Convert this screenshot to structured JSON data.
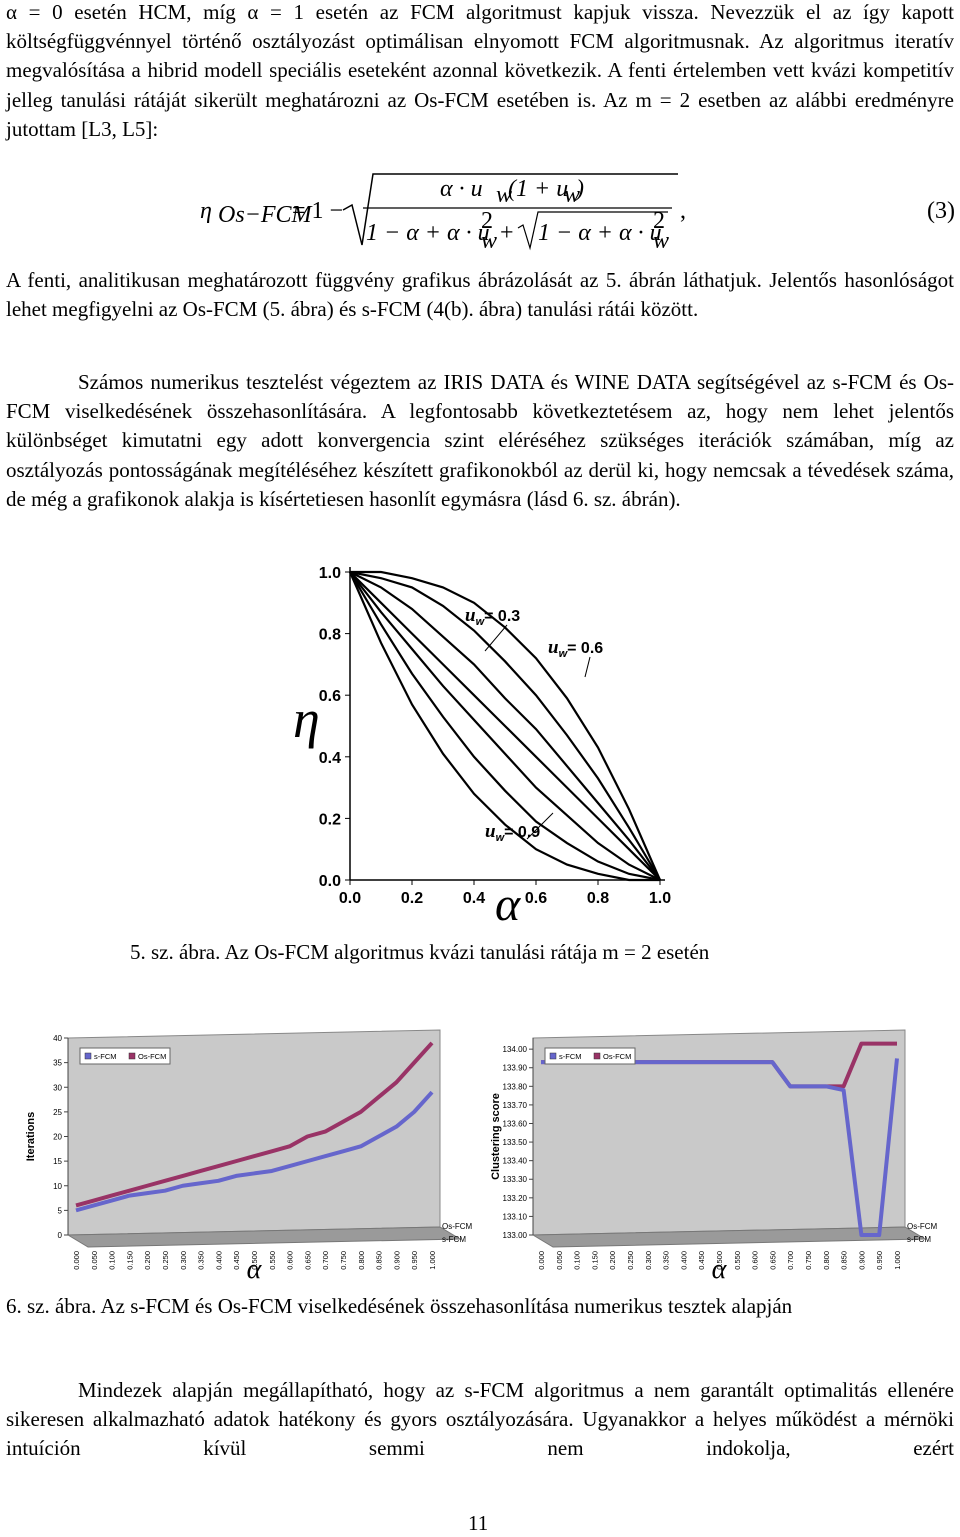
{
  "paragraphs": [
    "α = 0 esetén HCM, míg α = 1 esetén az FCM algoritmust kapjuk vissza. Nevezzük el az így kapott költségfüggvénnyel történő osztályozást optimálisan elnyomott FCM algoritmusnak. Az algoritmus iteratív megvalósítása a hibrid modell speciális eseteként azonnal következik. A fenti értelemben vett kvázi kompetitív jelleg tanulási rátáját sikerült meghatározni az Os-FCM esetében is. Az m = 2 esetben az alábbi eredményre jutottam [L3, L5]:",
    "A fenti, analitikusan meghatározott függvény grafikus ábrázolását az 5. ábrán láthatjuk. Jelentős hasonlóságot lehet megfigyelni az Os-FCM (5. ábra) és s-FCM (4(b). ábra) tanulási rátái között.",
    "Számos numerikus tesztelést végeztem az IRIS DATA és WINE DATA segítségével az s-FCM és Os-FCM viselkedésének összehasonlítására. A legfontosabb következtetésem az, hogy nem lehet jelentős különbséget kimutatni egy adott konvergencia szint eléréséhez szükséges iterációk számában, míg az osztályozás pontosságának megítéléséhez készített grafikonokból az derül ki, hogy nemcsak a tévedések száma, de még a grafikonok alakja is kísértetiesen hasonlít egymásra (lásd 6. sz. ábrán).",
    "Mindezek alapján megállapítható, hogy az s-FCM algoritmus a nem garantált optimalitás ellenére sikeresen alkalmazható adatok hatékony és gyors osztályozására. Ugyanakkor a helyes működést a mérnöki intuíción kívül semmi nem indokolja, ezért"
  ],
  "equation": {
    "lhs": "η",
    "lhs_sub": "Os−FCM",
    "rel": "= 1 −",
    "num": [
      "α · u",
      "w",
      "(1 + u",
      "w",
      ")"
    ],
    "den": [
      "1 − α + α · u",
      "2",
      "w",
      "+",
      "1 − α + α · u",
      "2",
      "w"
    ],
    "comma": ",",
    "number": "(3)"
  },
  "captions": [
    "5. sz. ábra. Az Os-FCM algoritmus kvázi tanulási rátája m = 2 esetén",
    "6. sz. ábra. Az s-FCM és Os-FCM viselkedésének összehasonlítása numerikus tesztek alapján"
  ],
  "page_number": "11",
  "chart_data": [
    {
      "type": "line",
      "x": [
        0,
        0.1,
        0.2,
        0.3,
        0.4,
        0.5,
        0.6,
        0.7,
        0.8,
        0.9,
        1
      ],
      "series": [
        {
          "color": "#000000",
          "values": [
            1,
            1.0,
            0.98,
            0.95,
            0.9,
            0.82,
            0.72,
            0.59,
            0.43,
            0.23,
            0
          ]
        },
        {
          "color": "#000000",
          "values": [
            1,
            0.98,
            0.95,
            0.89,
            0.81,
            0.71,
            0.6,
            0.47,
            0.33,
            0.17,
            0
          ]
        },
        {
          "color": "#000000",
          "values": [
            1,
            0.95,
            0.88,
            0.79,
            0.7,
            0.59,
            0.49,
            0.37,
            0.25,
            0.13,
            0
          ]
        },
        {
          "color": "#000000",
          "values": [
            1,
            0.9,
            0.8,
            0.7,
            0.6,
            0.5,
            0.4,
            0.3,
            0.2,
            0.1,
            0
          ]
        },
        {
          "color": "#000000",
          "values": [
            1,
            0.87,
            0.75,
            0.63,
            0.52,
            0.41,
            0.3,
            0.21,
            0.12,
            0.05,
            0
          ]
        },
        {
          "color": "#000000",
          "values": [
            1,
            0.83,
            0.67,
            0.53,
            0.4,
            0.29,
            0.19,
            0.12,
            0.06,
            0.02,
            0
          ]
        },
        {
          "color": "#000000",
          "values": [
            1,
            0.77,
            0.57,
            0.41,
            0.28,
            0.18,
            0.1,
            0.05,
            0.02,
            0.0,
            0
          ]
        }
      ],
      "xlim": [
        0,
        1
      ],
      "ylim": [
        0,
        1
      ],
      "xticks": [
        {
          "value": 0,
          "label": "0.0"
        },
        {
          "value": 0.2,
          "label": "0.2"
        },
        {
          "value": 0.4,
          "label": "0.4"
        },
        {
          "value": 0.6,
          "label": "0.6"
        },
        {
          "value": 0.8,
          "label": "0.8"
        },
        {
          "value": 1,
          "label": "1.0"
        }
      ],
      "yticks": [
        {
          "value": 0,
          "label": "0.0"
        },
        {
          "value": 0.2,
          "label": "0.2"
        },
        {
          "value": 0.4,
          "label": "0.4"
        },
        {
          "value": 0.6,
          "label": "0.6"
        },
        {
          "value": 0.8,
          "label": "0.8"
        },
        {
          "value": 1,
          "label": "1.0"
        }
      ],
      "x_label": "α",
      "y_label": "η",
      "annotations": [
        {
          "text": "u",
          "sub": "w",
          "rest": "= 0.3"
        },
        {
          "text": "u",
          "sub": "w",
          "rest": "= 0.6"
        },
        {
          "text": "u",
          "sub": "w",
          "rest": "= 0.9"
        }
      ]
    },
    {
      "type": "line3d",
      "categories": [
        "0.000",
        "0.050",
        "0.100",
        "0.150",
        "0.200",
        "0.250",
        "0.300",
        "0.350",
        "0.400",
        "0.450",
        "0.500",
        "0.550",
        "0.600",
        "0.650",
        "0.700",
        "0.750",
        "0.800",
        "0.850",
        "0.900",
        "0.950",
        "1.000"
      ],
      "series": [
        {
          "name": "s-FCM",
          "color": "#6666cc",
          "values": [
            5,
            6,
            7,
            8,
            8.5,
            9,
            10,
            10.5,
            11,
            12,
            12.5,
            13,
            14,
            15,
            16,
            17,
            18,
            20,
            22,
            25,
            29
          ]
        },
        {
          "name": "Os-FCM",
          "color": "#993366",
          "values": [
            6,
            7,
            8,
            9,
            10,
            11,
            12,
            13,
            14,
            15,
            16,
            17,
            18,
            20,
            21,
            23,
            25,
            28,
            31,
            35,
            39
          ]
        }
      ],
      "ylim": [
        0,
        40
      ],
      "yticks": [
        0,
        5,
        10,
        15,
        20,
        25,
        30,
        35,
        40
      ],
      "y_label": "Iterations",
      "x_label": "α",
      "legend": "top-left",
      "depth_labels": [
        "Os-FCM",
        "s-FCM"
      ]
    },
    {
      "type": "line3d",
      "categories": [
        "0.000",
        "0.050",
        "0.100",
        "0.150",
        "0.200",
        "0.250",
        "0.300",
        "0.350",
        "0.400",
        "0.450",
        "0.500",
        "0.550",
        "0.600",
        "0.650",
        "0.700",
        "0.750",
        "0.800",
        "0.850",
        "0.900",
        "0.950",
        "1.000"
      ],
      "series": [
        {
          "name": "s-FCM",
          "color": "#6666cc",
          "values": [
            133.93,
            133.93,
            133.93,
            133.93,
            133.93,
            133.93,
            133.93,
            133.93,
            133.93,
            133.93,
            133.93,
            133.93,
            133.93,
            133.93,
            133.8,
            133.8,
            133.8,
            133.78,
            133.0,
            133.0,
            133.95
          ]
        },
        {
          "name": "Os-FCM",
          "color": "#993366",
          "values": [
            133.93,
            133.93,
            133.93,
            133.93,
            133.93,
            133.93,
            133.93,
            133.93,
            133.93,
            133.93,
            133.93,
            133.93,
            133.93,
            133.93,
            133.8,
            133.8,
            133.8,
            133.8,
            134.03,
            134.03,
            134.03
          ]
        }
      ],
      "ylim": [
        133,
        134.06
      ],
      "yticks": [
        {
          "value": 133,
          "label": "133.00"
        },
        {
          "value": 133.1,
          "label": "133.10"
        },
        {
          "value": 133.2,
          "label": "133.20"
        },
        {
          "value": 133.3,
          "label": "133.30"
        },
        {
          "value": 133.4,
          "label": "133.40"
        },
        {
          "value": 133.5,
          "label": "133.50"
        },
        {
          "value": 133.6,
          "label": "133.60"
        },
        {
          "value": 133.7,
          "label": "133.70"
        },
        {
          "value": 133.8,
          "label": "133.80"
        },
        {
          "value": 133.9,
          "label": "133.90"
        },
        {
          "value": 134,
          "label": "134.00"
        }
      ],
      "y_label": "Clustering score",
      "x_label": "α",
      "legend": "top-left",
      "depth_labels": [
        "Os-FCM",
        "s-FCM"
      ]
    }
  ]
}
